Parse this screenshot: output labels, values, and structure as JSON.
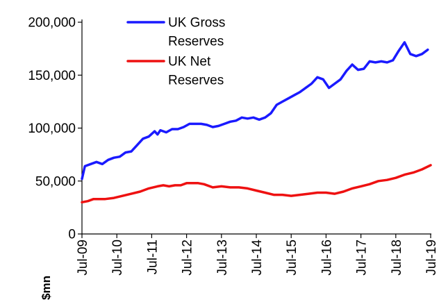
{
  "chart_data": {
    "type": "line",
    "title": "",
    "ylabel": "$mn",
    "xlabel": "",
    "ylim": [
      0,
      200000
    ],
    "xlim": [
      "Jul-09",
      "Jul-19"
    ],
    "y_ticks": [
      "0",
      "50,000",
      "100,000",
      "150,000",
      "200,000"
    ],
    "x_ticks": [
      "Jul-09",
      "Jul-10",
      "Jul-11",
      "Jul-12",
      "Jul-13",
      "Jul-14",
      "Jul-15",
      "Jul-16",
      "Jul-17",
      "Jul-18",
      "Jul-19"
    ],
    "legend": {
      "position": "top-left-inside",
      "entries": [
        "UK Gross Reserves",
        "UK Net Reserves"
      ]
    },
    "grid": false,
    "series": [
      {
        "name": "UK Gross Reserves",
        "color": "#1a1aff",
        "points": [
          [
            "2009-07",
            52000
          ],
          [
            "2009-08",
            64000
          ],
          [
            "2009-10",
            66000
          ],
          [
            "2009-12",
            68000
          ],
          [
            "2010-02",
            66000
          ],
          [
            "2010-04",
            70000
          ],
          [
            "2010-06",
            72000
          ],
          [
            "2010-08",
            73000
          ],
          [
            "2010-10",
            77000
          ],
          [
            "2010-12",
            78000
          ],
          [
            "2011-02",
            84000
          ],
          [
            "2011-04",
            90000
          ],
          [
            "2011-06",
            92000
          ],
          [
            "2011-08",
            97000
          ],
          [
            "2011-09",
            94000
          ],
          [
            "2011-10",
            98000
          ],
          [
            "2011-12",
            96000
          ],
          [
            "2012-02",
            99000
          ],
          [
            "2012-04",
            99000
          ],
          [
            "2012-06",
            101000
          ],
          [
            "2012-08",
            104000
          ],
          [
            "2012-10",
            104000
          ],
          [
            "2012-12",
            104000
          ],
          [
            "2013-02",
            103000
          ],
          [
            "2013-04",
            101000
          ],
          [
            "2013-06",
            102000
          ],
          [
            "2013-08",
            104000
          ],
          [
            "2013-10",
            106000
          ],
          [
            "2013-12",
            107000
          ],
          [
            "2014-02",
            110000
          ],
          [
            "2014-04",
            109000
          ],
          [
            "2014-06",
            110000
          ],
          [
            "2014-08",
            108000
          ],
          [
            "2014-10",
            110000
          ],
          [
            "2014-12",
            114000
          ],
          [
            "2015-02",
            122000
          ],
          [
            "2015-04",
            125000
          ],
          [
            "2015-06",
            128000
          ],
          [
            "2015-08",
            131000
          ],
          [
            "2015-10",
            134000
          ],
          [
            "2015-12",
            138000
          ],
          [
            "2016-02",
            142000
          ],
          [
            "2016-04",
            148000
          ],
          [
            "2016-06",
            146000
          ],
          [
            "2016-08",
            138000
          ],
          [
            "2016-10",
            142000
          ],
          [
            "2016-12",
            146000
          ],
          [
            "2017-02",
            154000
          ],
          [
            "2017-04",
            160000
          ],
          [
            "2017-06",
            155000
          ],
          [
            "2017-08",
            156000
          ],
          [
            "2017-10",
            163000
          ],
          [
            "2017-12",
            162000
          ],
          [
            "2018-02",
            163000
          ],
          [
            "2018-04",
            162000
          ],
          [
            "2018-06",
            164000
          ],
          [
            "2018-08",
            173000
          ],
          [
            "2018-10",
            181000
          ],
          [
            "2018-12",
            170000
          ],
          [
            "2019-02",
            168000
          ],
          [
            "2019-04",
            170000
          ],
          [
            "2019-06",
            174000
          ]
        ]
      },
      {
        "name": "UK Net Reserves",
        "color": "#ee1111",
        "points": [
          [
            "2009-07",
            30000
          ],
          [
            "2009-09",
            31000
          ],
          [
            "2009-11",
            33000
          ],
          [
            "2010-01",
            33000
          ],
          [
            "2010-03",
            33000
          ],
          [
            "2010-06",
            34000
          ],
          [
            "2010-09",
            36000
          ],
          [
            "2010-12",
            38000
          ],
          [
            "2011-03",
            40000
          ],
          [
            "2011-06",
            43000
          ],
          [
            "2011-09",
            45000
          ],
          [
            "2011-11",
            46000
          ],
          [
            "2012-01",
            45000
          ],
          [
            "2012-03",
            46000
          ],
          [
            "2012-05",
            46000
          ],
          [
            "2012-07",
            48000
          ],
          [
            "2012-09",
            48000
          ],
          [
            "2012-11",
            48000
          ],
          [
            "2013-01",
            47000
          ],
          [
            "2013-04",
            44000
          ],
          [
            "2013-07",
            45000
          ],
          [
            "2013-10",
            44000
          ],
          [
            "2014-01",
            44000
          ],
          [
            "2014-04",
            43000
          ],
          [
            "2014-07",
            41000
          ],
          [
            "2014-10",
            39000
          ],
          [
            "2015-01",
            37000
          ],
          [
            "2015-04",
            37000
          ],
          [
            "2015-07",
            36000
          ],
          [
            "2015-10",
            37000
          ],
          [
            "2016-01",
            38000
          ],
          [
            "2016-04",
            39000
          ],
          [
            "2016-07",
            39000
          ],
          [
            "2016-10",
            38000
          ],
          [
            "2017-01",
            40000
          ],
          [
            "2017-04",
            43000
          ],
          [
            "2017-07",
            45000
          ],
          [
            "2017-10",
            47000
          ],
          [
            "2018-01",
            50000
          ],
          [
            "2018-04",
            51000
          ],
          [
            "2018-07",
            53000
          ],
          [
            "2018-10",
            56000
          ],
          [
            "2019-01",
            58000
          ],
          [
            "2019-04",
            61000
          ],
          [
            "2019-07",
            65000
          ]
        ]
      }
    ]
  }
}
